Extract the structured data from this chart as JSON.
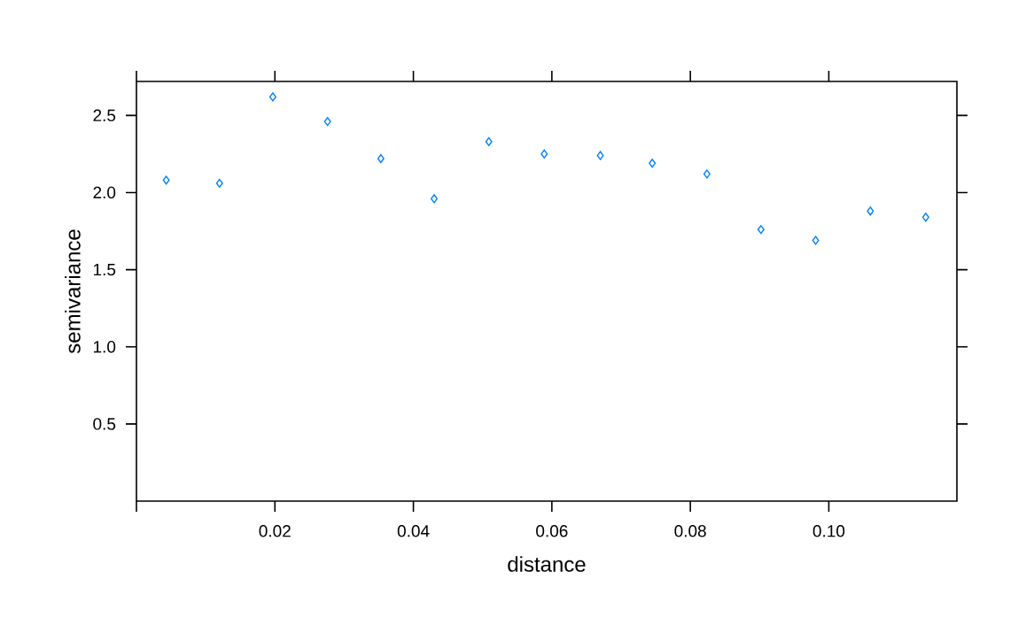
{
  "chart_data": {
    "type": "scatter",
    "xlabel": "distance",
    "ylabel": "semivariance",
    "x": [
      0.0043,
      0.012,
      0.0197,
      0.0276,
      0.0353,
      0.043,
      0.0509,
      0.0589,
      0.067,
      0.0745,
      0.0824,
      0.0902,
      0.0981,
      0.106,
      0.114
    ],
    "values": [
      2.08,
      2.06,
      2.62,
      2.46,
      2.22,
      1.96,
      2.33,
      2.25,
      2.24,
      2.19,
      2.12,
      1.76,
      1.69,
      1.88,
      1.84
    ],
    "color": "#0080ff",
    "marker": "diamond",
    "xlim": [
      0,
      0.1185
    ],
    "ylim": [
      0,
      2.72
    ],
    "xticks": [
      {
        "value": 0,
        "label": null
      },
      0.02,
      0.04,
      0.06,
      0.08,
      {
        "value": 0.1,
        "label": "0.10"
      }
    ],
    "yticks": [
      0.5,
      {
        "value": 1,
        "label": "1.0"
      },
      1.5,
      {
        "value": 2,
        "label": "2.0"
      },
      2.5
    ]
  }
}
